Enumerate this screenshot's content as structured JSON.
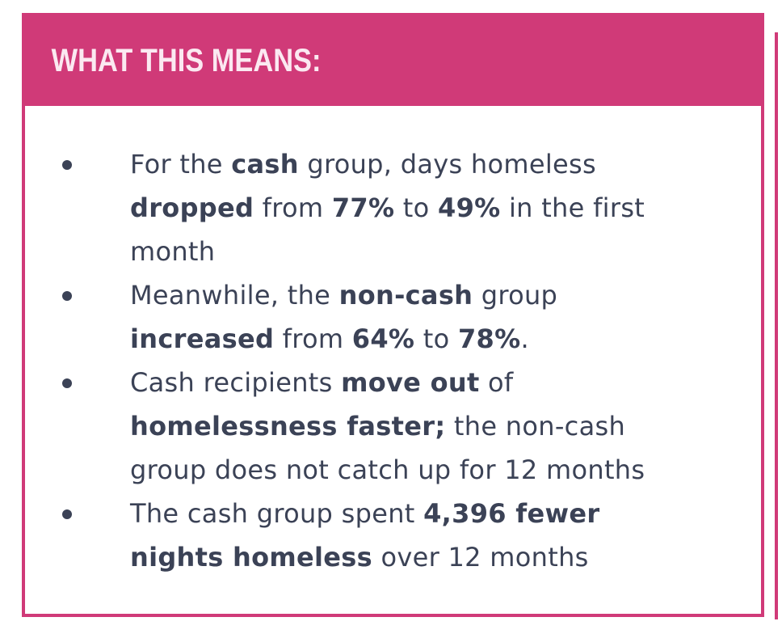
{
  "colors": {
    "accent": "#d03a78",
    "header_text": "#fbe9f1",
    "body_text": "#3b4256"
  },
  "title": "WHAT THIS MEANS:",
  "bullets": [
    {
      "lines": [
        [
          {
            "text": "For the ",
            "bold": false
          },
          {
            "text": "cash",
            "bold": true
          },
          {
            "text": " group, days homeless",
            "bold": false
          }
        ],
        [
          {
            "text": "dropped",
            "bold": true
          },
          {
            "text": " from ",
            "bold": false
          },
          {
            "text": "77%",
            "bold": true
          },
          {
            "text": " to ",
            "bold": false
          },
          {
            "text": "49%",
            "bold": true
          },
          {
            "text": " in the first",
            "bold": false
          }
        ],
        [
          {
            "text": "month",
            "bold": false
          }
        ]
      ]
    },
    {
      "lines": [
        [
          {
            "text": "Meanwhile, the ",
            "bold": false
          },
          {
            "text": "non-cash",
            "bold": true
          },
          {
            "text": " group",
            "bold": false
          }
        ],
        [
          {
            "text": "increased",
            "bold": true
          },
          {
            "text": " from ",
            "bold": false
          },
          {
            "text": "64%",
            "bold": true
          },
          {
            "text": " to ",
            "bold": false
          },
          {
            "text": "78%",
            "bold": true
          },
          {
            "text": ".",
            "bold": false
          }
        ]
      ]
    },
    {
      "lines": [
        [
          {
            "text": "Cash recipients ",
            "bold": false
          },
          {
            "text": "move out",
            "bold": true
          },
          {
            "text": " of",
            "bold": false
          }
        ],
        [
          {
            "text": "homelessness faster;",
            "bold": true
          },
          {
            "text": " the non-cash",
            "bold": false
          }
        ],
        [
          {
            "text": "group does not catch up for 12 months",
            "bold": false
          }
        ]
      ]
    },
    {
      "lines": [
        [
          {
            "text": "The cash group spent ",
            "bold": false
          },
          {
            "text": "4,396 fewer",
            "bold": true
          }
        ],
        [
          {
            "text": "nights homeless",
            "bold": true
          },
          {
            "text": " over 12 months",
            "bold": false
          }
        ]
      ]
    }
  ]
}
